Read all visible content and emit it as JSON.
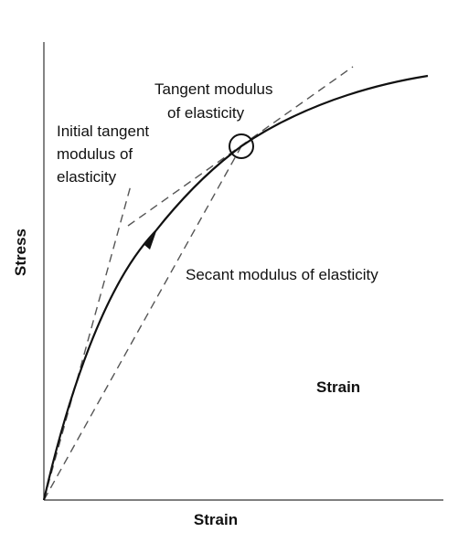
{
  "diagram": {
    "labels": {
      "tangent_modulus_line1": "Tangent modulus",
      "tangent_modulus_line2": "of elasticity",
      "initial_tangent_line1": "Initial tangent",
      "initial_tangent_line2": "modulus of",
      "initial_tangent_line3": "elasticity",
      "secant_modulus": "Secant modulus of elasticity",
      "strain_inner": "Strain",
      "y_axis": "Stress",
      "x_axis": "Strain"
    },
    "colors": {
      "curve": "#111111",
      "dashed_lines": "#555555",
      "axes": "#333333"
    }
  }
}
